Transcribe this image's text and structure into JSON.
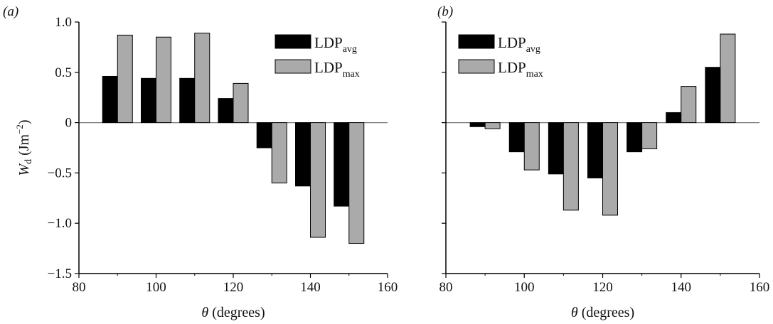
{
  "chart_data": [
    {
      "type": "bar",
      "panel_label": "(a)",
      "x": [
        90,
        100,
        110,
        120,
        130,
        140,
        150
      ],
      "series": [
        {
          "name": "LDPavg",
          "name_main": "LDP",
          "name_sub": "avg",
          "color": "#000000",
          "values": [
            0.46,
            0.44,
            0.44,
            0.24,
            -0.25,
            -0.63,
            -0.83
          ]
        },
        {
          "name": "LDPmax",
          "name_main": "LDP",
          "name_sub": "max",
          "color": "#aaaaaa",
          "values": [
            0.87,
            0.85,
            0.89,
            0.39,
            -0.6,
            -1.14,
            -1.2
          ]
        }
      ],
      "xlim": [
        80,
        160
      ],
      "ylim": [
        -1.5,
        1.0
      ],
      "xticks": [
        "80",
        "100",
        "120",
        "140",
        "160"
      ],
      "yticks": [
        "1.0",
        "0.5",
        "0",
        "−0.5",
        "−1.0",
        "−1.5"
      ],
      "xlabel_symbol": "θ",
      "xlabel_text": " (degrees)",
      "ylabel_symbol": "W",
      "ylabel_symbol_sub": "d",
      "ylabel_unit": " (Jm",
      "ylabel_unit_sup": "−2",
      "ylabel_unit_close": ")",
      "legend": "top-right"
    },
    {
      "type": "bar",
      "panel_label": "(b)",
      "x": [
        90,
        100,
        110,
        120,
        130,
        140,
        150
      ],
      "series": [
        {
          "name": "LDPavg",
          "name_main": "LDP",
          "name_sub": "avg",
          "color": "#000000",
          "values": [
            -0.04,
            -0.29,
            -0.51,
            -0.55,
            -0.29,
            0.1,
            0.55
          ]
        },
        {
          "name": "LDPmax",
          "name_main": "LDP",
          "name_sub": "max",
          "color": "#aaaaaa",
          "values": [
            -0.06,
            -0.47,
            -0.87,
            -0.92,
            -0.26,
            0.36,
            0.88
          ]
        }
      ],
      "xlim": [
        80,
        160
      ],
      "ylim": [
        -1.5,
        1.0
      ],
      "xticks": [
        "80",
        "100",
        "120",
        "140",
        "160"
      ],
      "xlabel_symbol": "θ",
      "xlabel_text": " (degrees)",
      "legend": "top-left"
    }
  ]
}
